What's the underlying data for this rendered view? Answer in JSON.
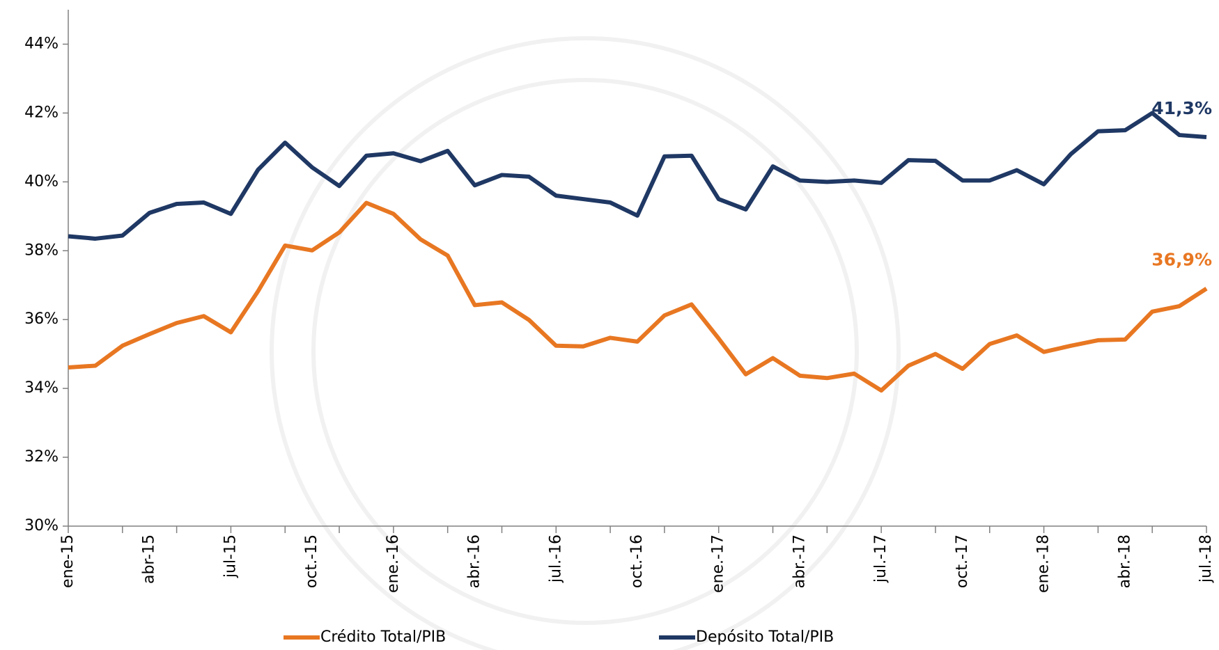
{
  "chart_data": {
    "type": "line",
    "categories": [
      "ene-15",
      null,
      null,
      "abr-15",
      null,
      null,
      "jul-15",
      null,
      null,
      "oct.-15",
      null,
      null,
      "ene.-16",
      null,
      null,
      "abr.-16",
      null,
      null,
      "jul.-16",
      null,
      null,
      "oct.-16",
      null,
      null,
      "ene.-17",
      null,
      null,
      "abr.-17",
      null,
      null,
      "jul.-17",
      null,
      null,
      "oct.-17",
      null,
      null,
      "ene.-18",
      null,
      null,
      "abr.-18",
      null,
      null,
      "jul.-18"
    ],
    "series": [
      {
        "name": "Crédito Total/PIB",
        "color": "#E87722",
        "end_label": "36,9%",
        "values": [
          34.61,
          34.66,
          35.24,
          35.58,
          35.9,
          36.1,
          35.63,
          36.82,
          38.15,
          38.01,
          38.53,
          39.39,
          39.07,
          38.33,
          37.86,
          36.42,
          36.5,
          35.99,
          35.24,
          35.22,
          35.47,
          35.36,
          36.12,
          36.44,
          35.45,
          34.41,
          34.88,
          34.37,
          34.3,
          34.43,
          33.94,
          34.66,
          35.0,
          34.57,
          35.29,
          35.54,
          35.06,
          35.24,
          35.4,
          35.42,
          36.23,
          36.39,
          36.9
        ]
      },
      {
        "name": "Depósito Total/PIB",
        "color": "#1F3864",
        "end_label": "41,3%",
        "values": [
          38.42,
          38.35,
          38.44,
          39.1,
          39.36,
          39.4,
          39.07,
          40.35,
          41.14,
          40.42,
          39.88,
          40.76,
          40.83,
          40.6,
          40.9,
          39.9,
          40.2,
          40.15,
          39.6,
          39.5,
          39.4,
          39.02,
          40.74,
          40.76,
          39.5,
          39.2,
          40.45,
          40.04,
          40.0,
          40.04,
          39.97,
          40.63,
          40.61,
          40.04,
          40.04,
          40.34,
          39.93,
          40.81,
          41.47,
          41.5,
          42.0,
          41.36,
          41.3
        ]
      }
    ],
    "ylim": [
      30,
      45
    ],
    "yticks": [
      {
        "value": 30,
        "label": "30%"
      },
      {
        "value": 32,
        "label": "32%"
      },
      {
        "value": 34,
        "label": "34%"
      },
      {
        "value": 36,
        "label": "36%"
      },
      {
        "value": 38,
        "label": "38%"
      },
      {
        "value": 40,
        "label": "40%"
      },
      {
        "value": 42,
        "label": "42%"
      },
      {
        "value": 44,
        "label": "44%"
      }
    ],
    "grid": false
  }
}
